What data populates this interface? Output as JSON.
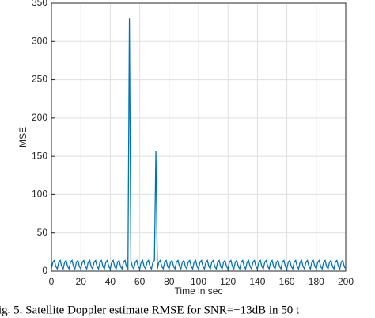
{
  "chart_data": {
    "type": "line",
    "caption": "ig. 5.   Satellite Doppler estimate RMSE for SNR=−13dB in 50 t",
    "xlabel": "Time in sec",
    "ylabel": "MSE",
    "xlim": [
      0,
      200
    ],
    "ylim": [
      0,
      350
    ],
    "xticks": [
      0,
      20,
      40,
      60,
      80,
      100,
      120,
      140,
      160,
      180,
      200
    ],
    "yticks": [
      0,
      50,
      100,
      150,
      200,
      250,
      300,
      350
    ],
    "grid": true,
    "x": [
      0,
      1,
      2,
      3,
      4,
      5,
      6,
      7,
      8,
      9,
      10,
      11,
      12,
      13,
      14,
      15,
      16,
      17,
      18,
      19,
      20,
      21,
      22,
      23,
      24,
      25,
      26,
      27,
      28,
      29,
      30,
      31,
      32,
      33,
      34,
      35,
      36,
      37,
      38,
      39,
      40,
      41,
      42,
      43,
      44,
      45,
      46,
      47,
      48,
      49,
      50,
      51,
      52,
      53,
      54,
      55,
      56,
      57,
      58,
      59,
      60,
      61,
      62,
      63,
      64,
      65,
      66,
      67,
      68,
      69,
      70,
      71,
      72,
      73,
      74,
      75,
      76,
      77,
      78,
      79,
      80,
      81,
      82,
      83,
      84,
      85,
      86,
      87,
      88,
      89,
      90,
      91,
      92,
      93,
      94,
      95,
      96,
      97,
      98,
      99,
      100,
      101,
      102,
      103,
      104,
      105,
      106,
      107,
      108,
      109,
      110,
      111,
      112,
      113,
      114,
      115,
      116,
      117,
      118,
      119,
      120,
      121,
      122,
      123,
      124,
      125,
      126,
      127,
      128,
      129,
      130,
      131,
      132,
      133,
      134,
      135,
      136,
      137,
      138,
      139,
      140,
      141,
      142,
      143,
      144,
      145,
      146,
      147,
      148,
      149,
      150,
      151,
      152,
      153,
      154,
      155,
      156,
      157,
      158,
      159,
      160,
      161,
      162,
      163,
      164,
      165,
      166,
      167,
      168,
      169,
      170,
      171,
      172,
      173,
      174,
      175,
      176,
      177,
      178,
      179,
      180,
      181,
      182,
      183,
      184,
      185,
      186,
      187,
      188,
      189,
      190,
      191,
      192,
      193,
      194,
      195,
      196,
      197,
      198,
      199,
      200
    ],
    "series": [
      {
        "name": "MSE",
        "color": "#0072bd",
        "values": [
          3,
          12,
          14,
          6,
          3,
          12,
          14,
          6,
          3,
          12,
          14,
          6,
          3,
          12,
          14,
          6,
          3,
          12,
          14,
          6,
          3,
          12,
          14,
          6,
          3,
          12,
          14,
          6,
          3,
          12,
          14,
          6,
          3,
          12,
          14,
          6,
          3,
          12,
          14,
          6,
          3,
          12,
          14,
          6,
          3,
          12,
          14,
          6,
          3,
          12,
          14,
          6,
          3,
          330,
          14,
          6,
          3,
          12,
          14,
          6,
          3,
          12,
          14,
          6,
          3,
          12,
          14,
          6,
          3,
          12,
          14,
          157,
          3,
          12,
          14,
          6,
          3,
          12,
          14,
          6,
          3,
          12,
          14,
          6,
          3,
          12,
          14,
          6,
          3,
          12,
          14,
          6,
          3,
          12,
          14,
          6,
          3,
          12,
          14,
          6,
          3,
          12,
          14,
          6,
          3,
          12,
          14,
          6,
          3,
          12,
          14,
          6,
          3,
          12,
          14,
          6,
          3,
          12,
          14,
          6,
          3,
          12,
          14,
          6,
          3,
          12,
          14,
          6,
          3,
          12,
          14,
          6,
          3,
          12,
          14,
          6,
          3,
          12,
          14,
          6,
          3,
          12,
          14,
          6,
          3,
          12,
          14,
          6,
          3,
          12,
          14,
          6,
          3,
          12,
          14,
          6,
          3,
          12,
          14,
          6,
          3,
          12,
          14,
          6,
          3,
          12,
          14,
          6,
          3,
          12,
          14,
          6,
          3,
          12,
          14,
          6,
          3,
          12,
          14,
          6,
          3,
          12,
          14,
          6,
          3,
          12,
          14,
          6,
          3,
          12,
          14,
          6,
          3,
          12,
          14,
          6,
          3,
          12,
          14,
          6,
          3
        ]
      }
    ]
  }
}
